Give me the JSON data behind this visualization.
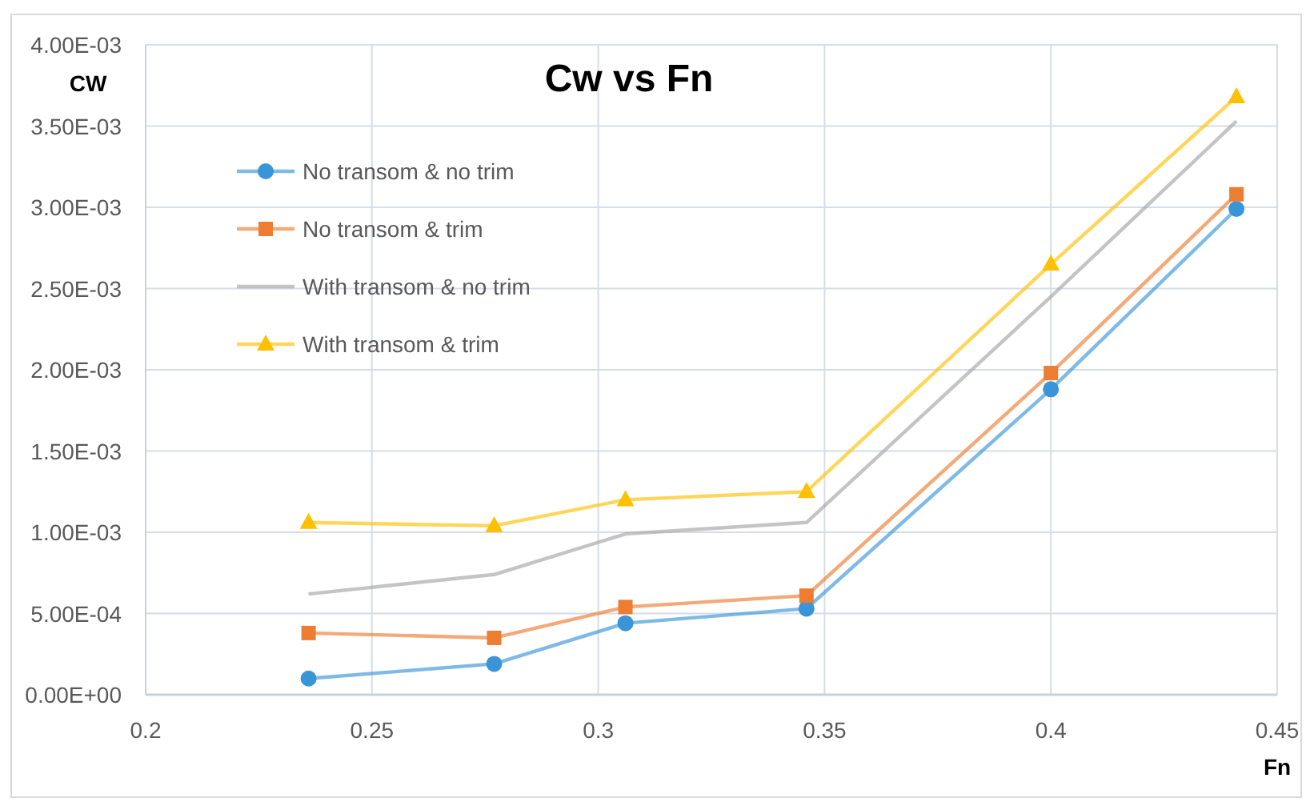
{
  "chart_data": {
    "type": "line",
    "title": "Cw vs Fn",
    "xlabel": "Fn",
    "ylabel": "CW",
    "xlim": [
      0.2,
      0.45
    ],
    "xticks": [
      0.2,
      0.25,
      0.3,
      0.35,
      0.4,
      0.45
    ],
    "ylim": [
      0,
      0.004
    ],
    "yticks": [
      {
        "value": 0,
        "label": "0.00E+00"
      },
      {
        "value": 0.0005,
        "label": "5.00E-04"
      },
      {
        "value": 0.001,
        "label": "1.00E-03"
      },
      {
        "value": 0.0015,
        "label": "1.50E-03"
      },
      {
        "value": 0.002,
        "label": "2.00E-03"
      },
      {
        "value": 0.0025,
        "label": "2.50E-03"
      },
      {
        "value": 0.003,
        "label": "3.00E-03"
      },
      {
        "value": 0.0035,
        "label": "3.50E-03"
      },
      {
        "value": 0.004,
        "label": "4.00E-03"
      }
    ],
    "grid": true,
    "legend": "top left",
    "line_style": "solid",
    "x": [
      0.236,
      0.277,
      0.306,
      0.346,
      0.4,
      0.441
    ],
    "series": [
      {
        "name": "No transom & no trim",
        "color": "#3a95d8",
        "marker": "circle",
        "values": [
          0.0001,
          0.00019,
          0.00044,
          0.00053,
          0.00188,
          0.00299
        ]
      },
      {
        "name": "No transom & trim",
        "color": "#ed7d31",
        "marker": "square",
        "values": [
          0.00038,
          0.00035,
          0.00054,
          0.00061,
          0.00198,
          0.00308
        ]
      },
      {
        "name": "With transom & no trim",
        "color": "#a5a5a5",
        "marker": "none",
        "values": [
          0.00062,
          0.00074,
          0.00099,
          0.00106,
          0.00245,
          0.00353
        ]
      },
      {
        "name": "With transom & trim",
        "color": "#ffc000",
        "marker": "triangle",
        "values": [
          0.00106,
          0.00104,
          0.0012,
          0.00125,
          0.00265,
          0.00368
        ]
      }
    ]
  }
}
